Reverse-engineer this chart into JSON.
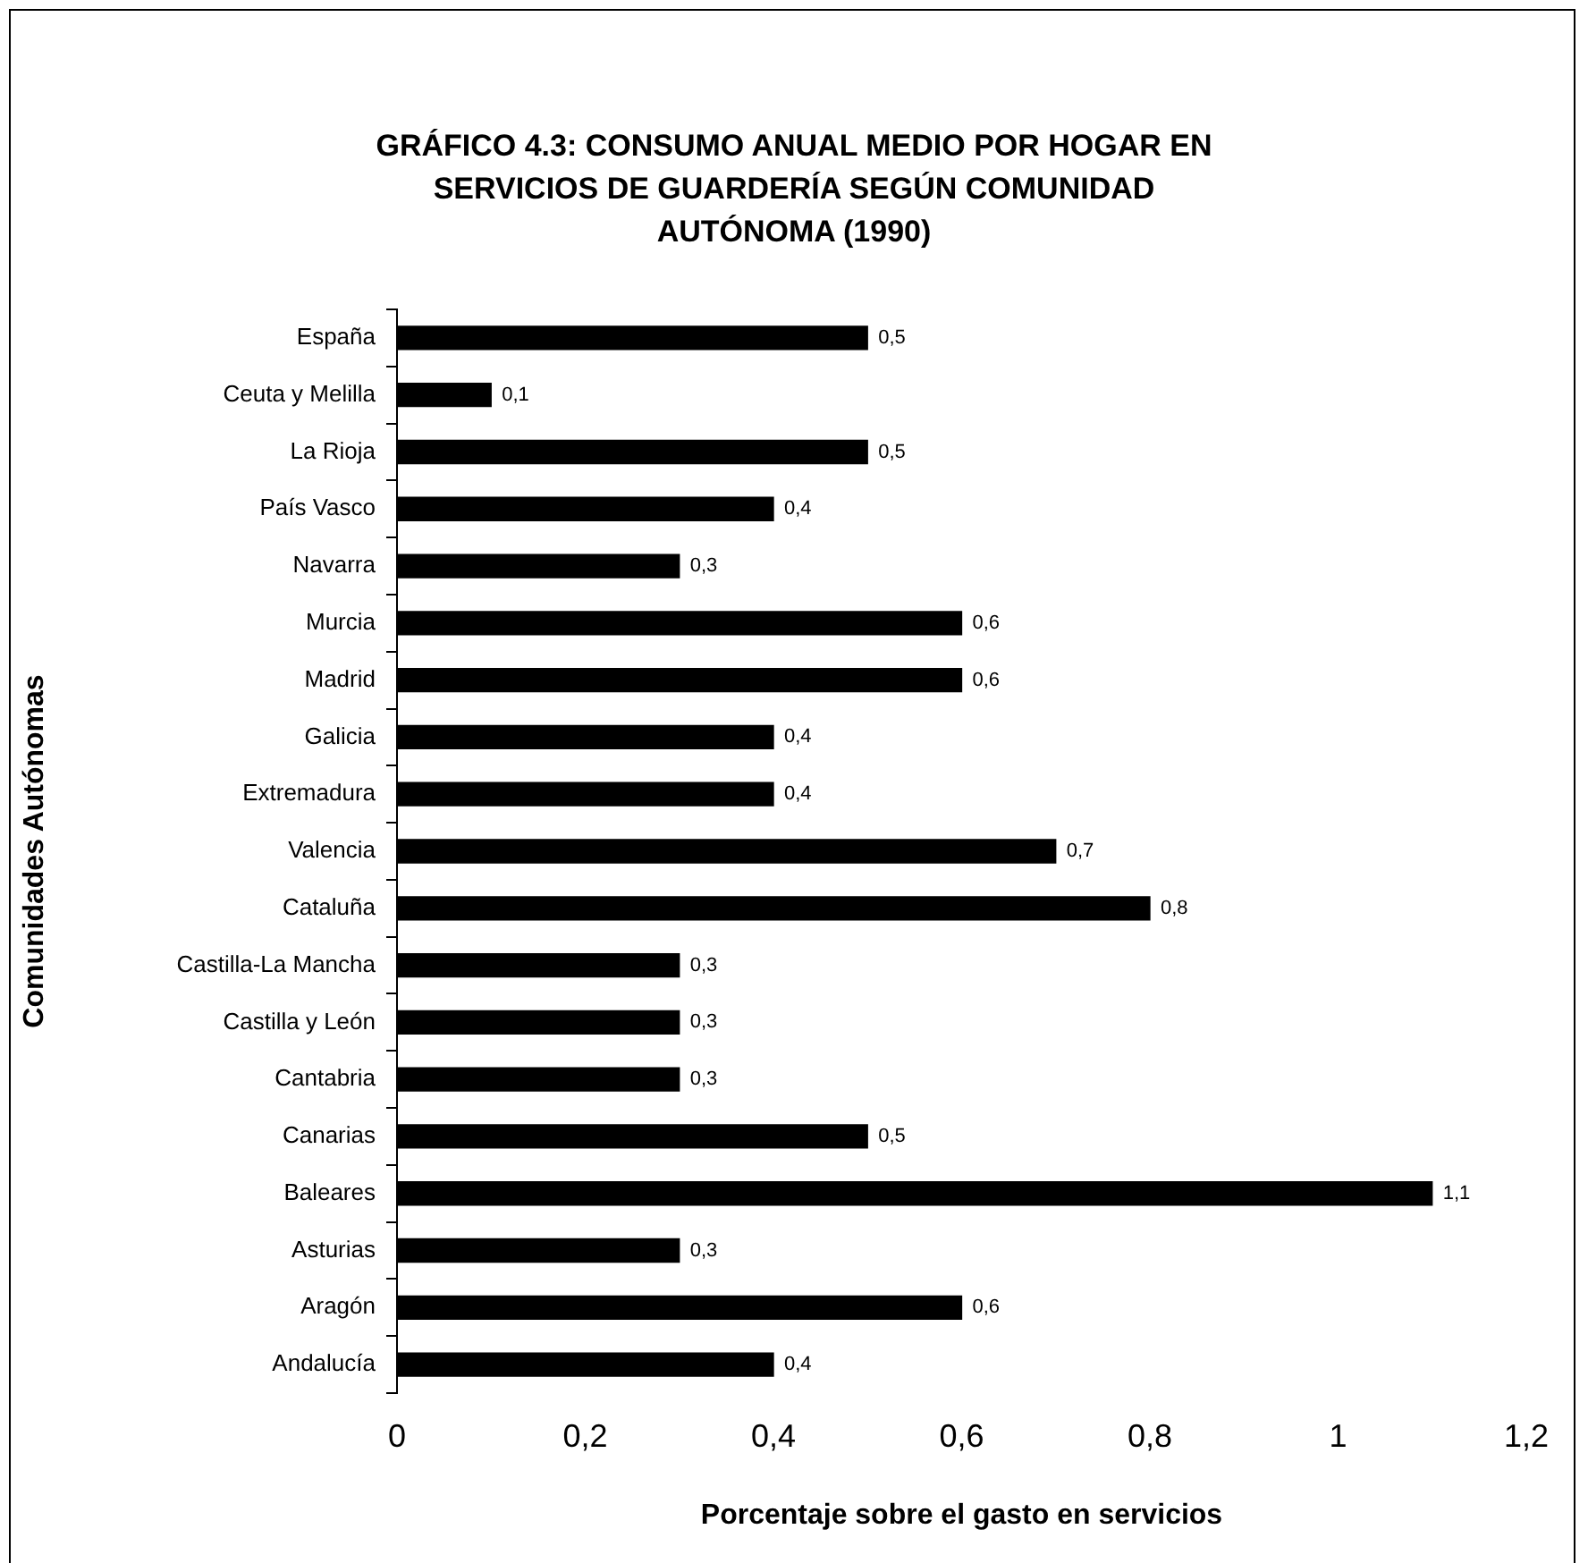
{
  "chart_data": {
    "type": "bar",
    "orientation": "horizontal",
    "title": "GRÁFICO 4.3: CONSUMO ANUAL MEDIO POR HOGAR EN SERVICIOS DE GUARDERÍA SEGÚN COMUNIDAD AUTÓNOMA (1990)",
    "xlabel": "Porcentaje sobre el gasto en servicios",
    "ylabel": "Comunidades Autónomas",
    "categories": [
      "España",
      "Ceuta y Melilla",
      "La Rioja",
      "País Vasco",
      "Navarra",
      "Murcia",
      "Madrid",
      "Galicia",
      "Extremadura",
      "Valencia",
      "Cataluña",
      "Castilla-La Mancha",
      "Castilla y León",
      "Cantabria",
      "Canarias",
      "Baleares",
      "Asturias",
      "Aragón",
      "Andalucía"
    ],
    "values": [
      0.5,
      0.1,
      0.5,
      0.4,
      0.3,
      0.6,
      0.6,
      0.4,
      0.4,
      0.7,
      0.8,
      0.3,
      0.3,
      0.3,
      0.5,
      1.1,
      0.3,
      0.6,
      0.4
    ],
    "value_labels": [
      "0,5",
      "0,1",
      "0,5",
      "0,4",
      "0,3",
      "0,6",
      "0,6",
      "0,4",
      "0,4",
      "0,7",
      "0,8",
      "0,3",
      "0,3",
      "0,3",
      "0,5",
      "1,1",
      "0,3",
      "0,6",
      "0,4"
    ],
    "color": "#000000",
    "xlim": [
      0,
      1.2
    ],
    "xticks": [
      0,
      {
        "value": 0.2,
        "label": "0,2"
      },
      {
        "value": 0.4,
        "label": "0,4"
      },
      {
        "value": 0.6,
        "label": "0,6"
      },
      {
        "value": 0.8,
        "label": "0,8"
      },
      1,
      {
        "value": 1.2,
        "label": "1,2"
      }
    ],
    "grid": false,
    "legend": false
  }
}
